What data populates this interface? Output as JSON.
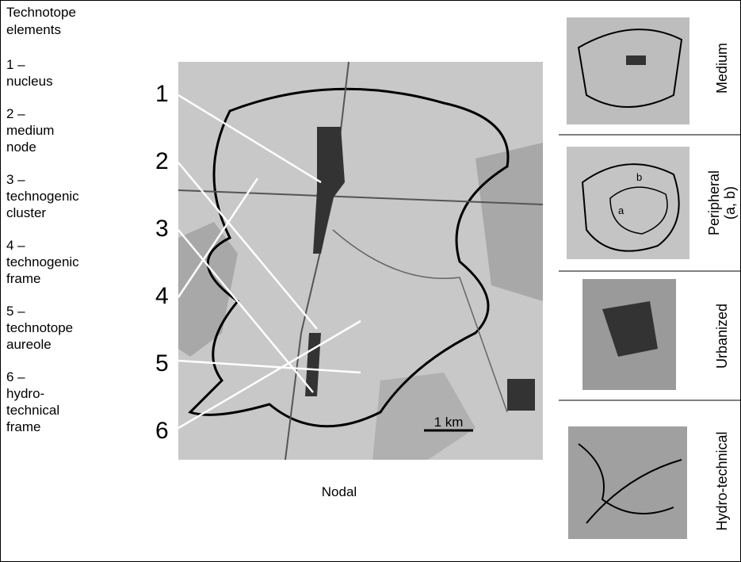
{
  "legend": {
    "title": [
      "Technotope",
      "elements"
    ],
    "items": [
      [
        "1 –",
        "nucleus"
      ],
      [
        "2 –",
        "medium",
        "node"
      ],
      [
        "3 –",
        "technogenic",
        "cluster"
      ],
      [
        "4 –",
        "technogenic",
        "frame"
      ],
      [
        "5 –",
        "technotope",
        "aureole"
      ],
      [
        "6 –",
        "hydro-",
        "technical",
        "frame"
      ]
    ]
  },
  "main_map": {
    "numbers": [
      "1",
      "2",
      "3",
      "4",
      "5",
      "6"
    ],
    "scale": "1 km",
    "caption": "Nodal"
  },
  "side_maps": [
    {
      "label": [
        "Medium"
      ]
    },
    {
      "label": [
        "Peripheral",
        "(a, b)"
      ],
      "marks": [
        "a",
        "b"
      ]
    },
    {
      "label": [
        "Urbanized"
      ]
    },
    {
      "label": [
        "Hydro-technical"
      ]
    }
  ]
}
